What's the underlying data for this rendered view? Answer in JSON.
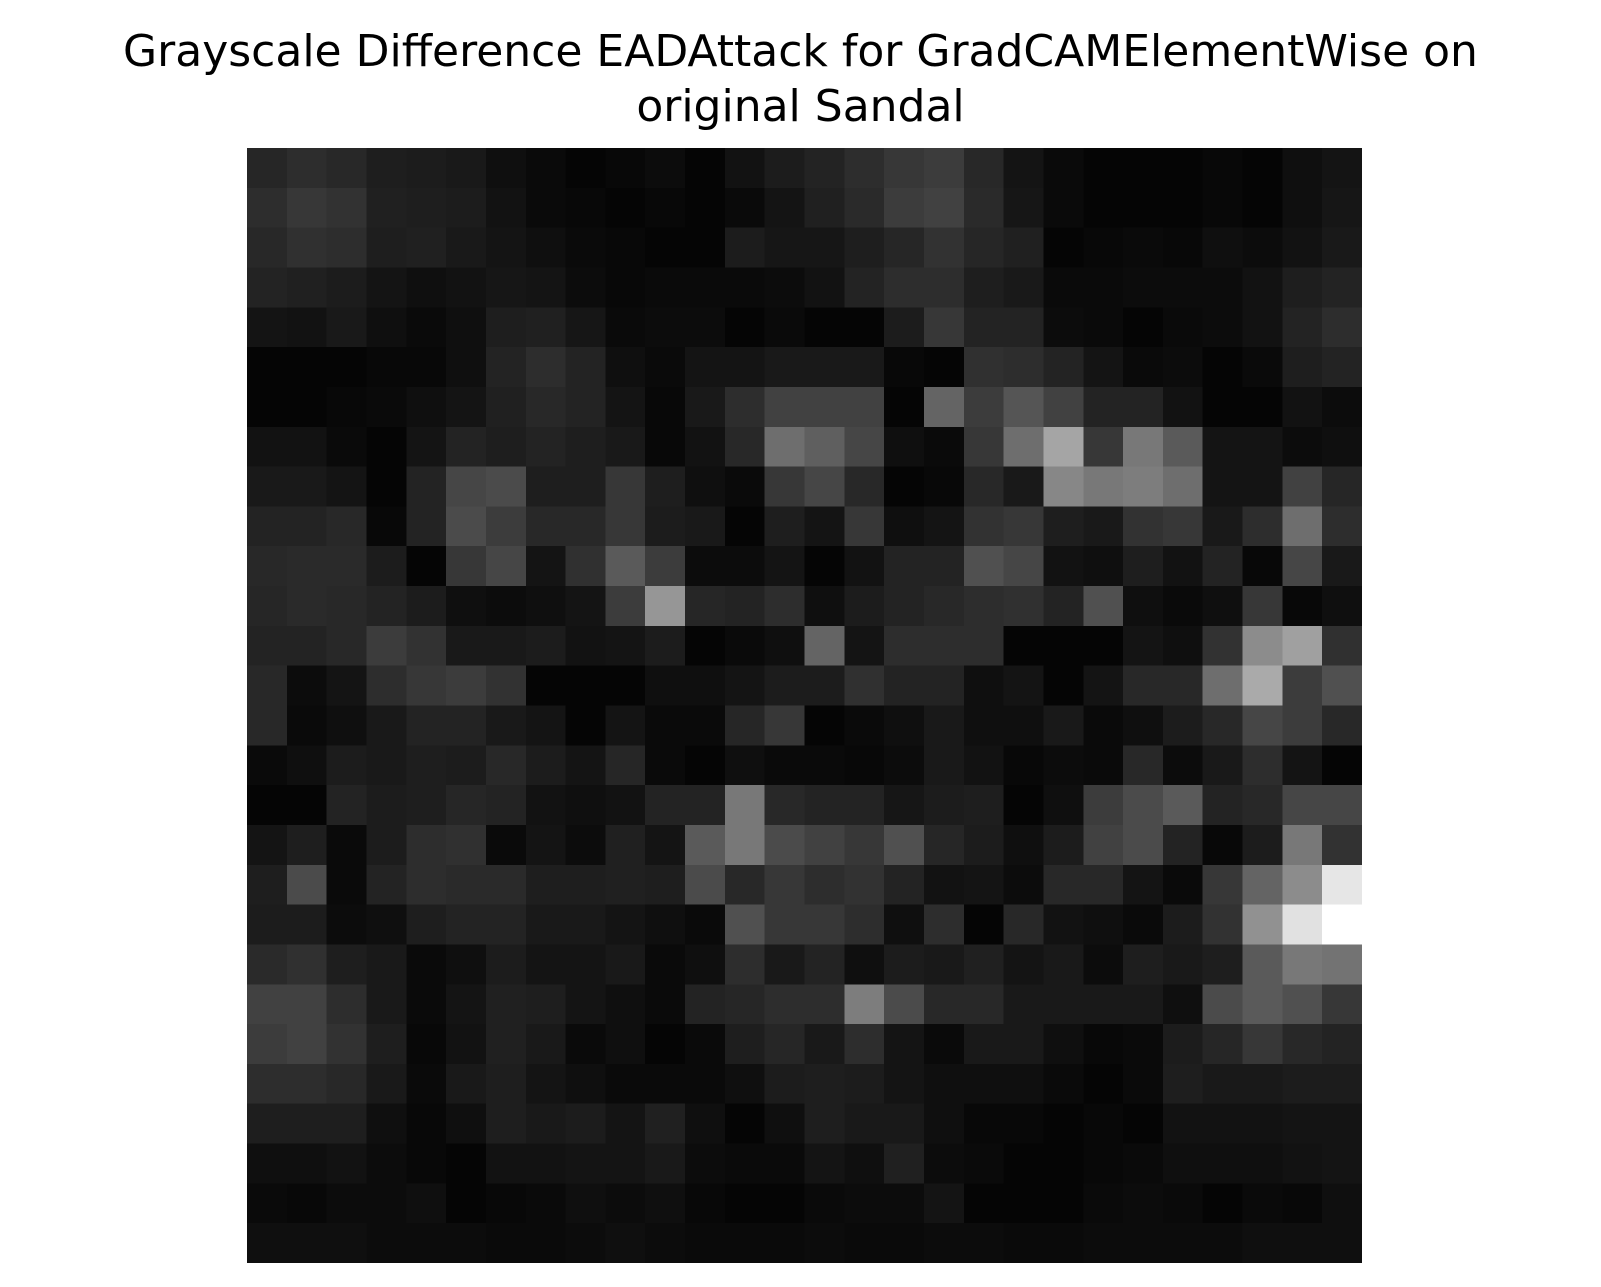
{
  "chart_data": {
    "type": "heatmap",
    "title_lines": [
      "Grayscale Difference EADAttack for GradCAMElementWise on",
      "original Sandal"
    ],
    "colormap": "gray",
    "axes": "off",
    "rows": 28,
    "cols": 28,
    "values": [
      [
        38,
        45,
        40,
        30,
        28,
        25,
        15,
        10,
        5,
        8,
        12,
        5,
        18,
        28,
        35,
        45,
        55,
        60,
        40,
        20,
        10,
        5,
        5,
        5,
        8,
        5,
        15,
        20
      ],
      [
        45,
        55,
        50,
        32,
        30,
        28,
        18,
        10,
        8,
        5,
        8,
        5,
        10,
        20,
        32,
        42,
        60,
        65,
        42,
        22,
        10,
        5,
        5,
        5,
        8,
        5,
        15,
        22
      ],
      [
        40,
        48,
        45,
        30,
        32,
        25,
        20,
        15,
        10,
        8,
        5,
        5,
        28,
        22,
        22,
        30,
        38,
        50,
        38,
        32,
        5,
        8,
        10,
        8,
        15,
        12,
        18,
        25
      ],
      [
        35,
        32,
        28,
        20,
        15,
        18,
        22,
        20,
        12,
        8,
        10,
        10,
        10,
        12,
        18,
        35,
        45,
        45,
        30,
        25,
        10,
        10,
        12,
        12,
        12,
        18,
        30,
        35
      ],
      [
        20,
        18,
        25,
        15,
        10,
        15,
        30,
        32,
        22,
        10,
        12,
        12,
        5,
        10,
        5,
        5,
        28,
        55,
        35,
        35,
        12,
        10,
        5,
        10,
        12,
        18,
        35,
        45
      ],
      [
        5,
        5,
        5,
        8,
        8,
        15,
        35,
        45,
        35,
        15,
        10,
        20,
        20,
        25,
        25,
        25,
        8,
        5,
        48,
        45,
        35,
        20,
        10,
        12,
        5,
        10,
        30,
        35
      ],
      [
        5,
        5,
        8,
        10,
        15,
        20,
        32,
        40,
        35,
        20,
        8,
        25,
        45,
        65,
        65,
        65,
        5,
        100,
        60,
        85,
        65,
        35,
        35,
        18,
        5,
        5,
        18,
        12
      ],
      [
        18,
        18,
        10,
        5,
        20,
        35,
        30,
        35,
        30,
        25,
        8,
        18,
        40,
        110,
        95,
        70,
        15,
        10,
        55,
        110,
        165,
        55,
        120,
        90,
        20,
        20,
        12,
        15
      ],
      [
        25,
        25,
        20,
        5,
        35,
        70,
        75,
        30,
        30,
        55,
        30,
        15,
        10,
        55,
        70,
        40,
        5,
        8,
        40,
        25,
        135,
        120,
        125,
        110,
        20,
        20,
        65,
        38
      ],
      [
        35,
        35,
        40,
        8,
        35,
        75,
        60,
        40,
        40,
        55,
        28,
        25,
        5,
        30,
        20,
        55,
        15,
        20,
        50,
        55,
        30,
        25,
        50,
        55,
        25,
        45,
        110,
        45
      ],
      [
        40,
        42,
        42,
        28,
        5,
        55,
        70,
        20,
        48,
        90,
        60,
        12,
        12,
        20,
        5,
        18,
        35,
        35,
        80,
        70,
        18,
        15,
        30,
        18,
        35,
        8,
        70,
        25
      ],
      [
        38,
        42,
        40,
        35,
        28,
        15,
        12,
        15,
        20,
        60,
        150,
        38,
        35,
        45,
        15,
        28,
        35,
        40,
        45,
        48,
        35,
        80,
        15,
        10,
        15,
        55,
        8,
        15
      ],
      [
        35,
        35,
        40,
        60,
        50,
        25,
        25,
        28,
        18,
        20,
        28,
        5,
        10,
        15,
        100,
        20,
        45,
        45,
        45,
        5,
        5,
        5,
        20,
        15,
        50,
        140,
        160,
        48
      ],
      [
        40,
        12,
        20,
        45,
        55,
        60,
        50,
        5,
        5,
        5,
        15,
        15,
        20,
        28,
        28,
        48,
        35,
        35,
        15,
        20,
        5,
        20,
        40,
        40,
        110,
        170,
        60,
        80
      ],
      [
        40,
        10,
        15,
        25,
        35,
        35,
        25,
        20,
        5,
        20,
        10,
        10,
        38,
        55,
        5,
        10,
        15,
        25,
        15,
        15,
        25,
        10,
        15,
        28,
        40,
        70,
        60,
        40
      ],
      [
        10,
        15,
        28,
        25,
        30,
        28,
        40,
        28,
        20,
        38,
        10,
        5,
        15,
        10,
        10,
        8,
        12,
        25,
        18,
        8,
        12,
        10,
        40,
        12,
        25,
        45,
        20,
        5
      ],
      [
        5,
        5,
        35,
        28,
        30,
        38,
        35,
        18,
        15,
        18,
        35,
        35,
        120,
        40,
        35,
        35,
        22,
        28,
        30,
        5,
        15,
        60,
        75,
        90,
        35,
        40,
        70,
        70
      ],
      [
        20,
        30,
        10,
        28,
        45,
        48,
        10,
        20,
        12,
        32,
        20,
        90,
        120,
        75,
        65,
        55,
        80,
        38,
        28,
        15,
        28,
        65,
        75,
        35,
        8,
        28,
        120,
        50
      ],
      [
        30,
        75,
        10,
        35,
        45,
        42,
        42,
        30,
        30,
        32,
        30,
        75,
        40,
        55,
        45,
        50,
        35,
        18,
        20,
        12,
        40,
        40,
        20,
        10,
        55,
        100,
        140,
        230
      ],
      [
        28,
        28,
        12,
        15,
        30,
        35,
        35,
        25,
        25,
        20,
        15,
        10,
        80,
        55,
        55,
        45,
        15,
        45,
        5,
        40,
        18,
        15,
        10,
        28,
        50,
        145,
        225,
        255
      ],
      [
        42,
        48,
        30,
        25,
        10,
        15,
        28,
        20,
        20,
        25,
        10,
        15,
        45,
        25,
        35,
        15,
        28,
        25,
        32,
        20,
        25,
        12,
        30,
        25,
        30,
        90,
        120,
        115
      ],
      [
        65,
        65,
        45,
        25,
        10,
        20,
        32,
        30,
        20,
        15,
        10,
        35,
        38,
        45,
        45,
        125,
        75,
        40,
        40,
        25,
        25,
        25,
        25,
        15,
        75,
        90,
        80,
        55
      ],
      [
        60,
        65,
        50,
        30,
        8,
        18,
        32,
        25,
        10,
        15,
        5,
        10,
        30,
        38,
        25,
        45,
        20,
        10,
        25,
        25,
        15,
        8,
        10,
        28,
        38,
        55,
        40,
        35
      ],
      [
        45,
        45,
        40,
        25,
        10,
        25,
        30,
        20,
        15,
        10,
        10,
        10,
        15,
        28,
        30,
        28,
        20,
        15,
        15,
        15,
        10,
        5,
        10,
        30,
        25,
        25,
        28,
        28
      ],
      [
        30,
        30,
        30,
        15,
        8,
        15,
        30,
        25,
        28,
        20,
        32,
        15,
        5,
        15,
        30,
        25,
        25,
        15,
        8,
        8,
        5,
        8,
        5,
        18,
        18,
        18,
        20,
        20
      ],
      [
        15,
        15,
        18,
        12,
        8,
        5,
        18,
        18,
        20,
        20,
        25,
        12,
        10,
        10,
        20,
        15,
        32,
        12,
        10,
        5,
        5,
        8,
        10,
        15,
        15,
        15,
        18,
        20
      ],
      [
        10,
        8,
        12,
        12,
        15,
        5,
        8,
        10,
        15,
        12,
        15,
        8,
        5,
        5,
        10,
        12,
        12,
        20,
        5,
        5,
        5,
        10,
        12,
        10,
        5,
        10,
        8,
        15
      ],
      [
        15,
        15,
        15,
        12,
        12,
        12,
        10,
        10,
        12,
        15,
        12,
        10,
        10,
        10,
        12,
        10,
        10,
        12,
        12,
        10,
        10,
        12,
        12,
        12,
        12,
        15,
        15,
        15
      ]
    ]
  }
}
